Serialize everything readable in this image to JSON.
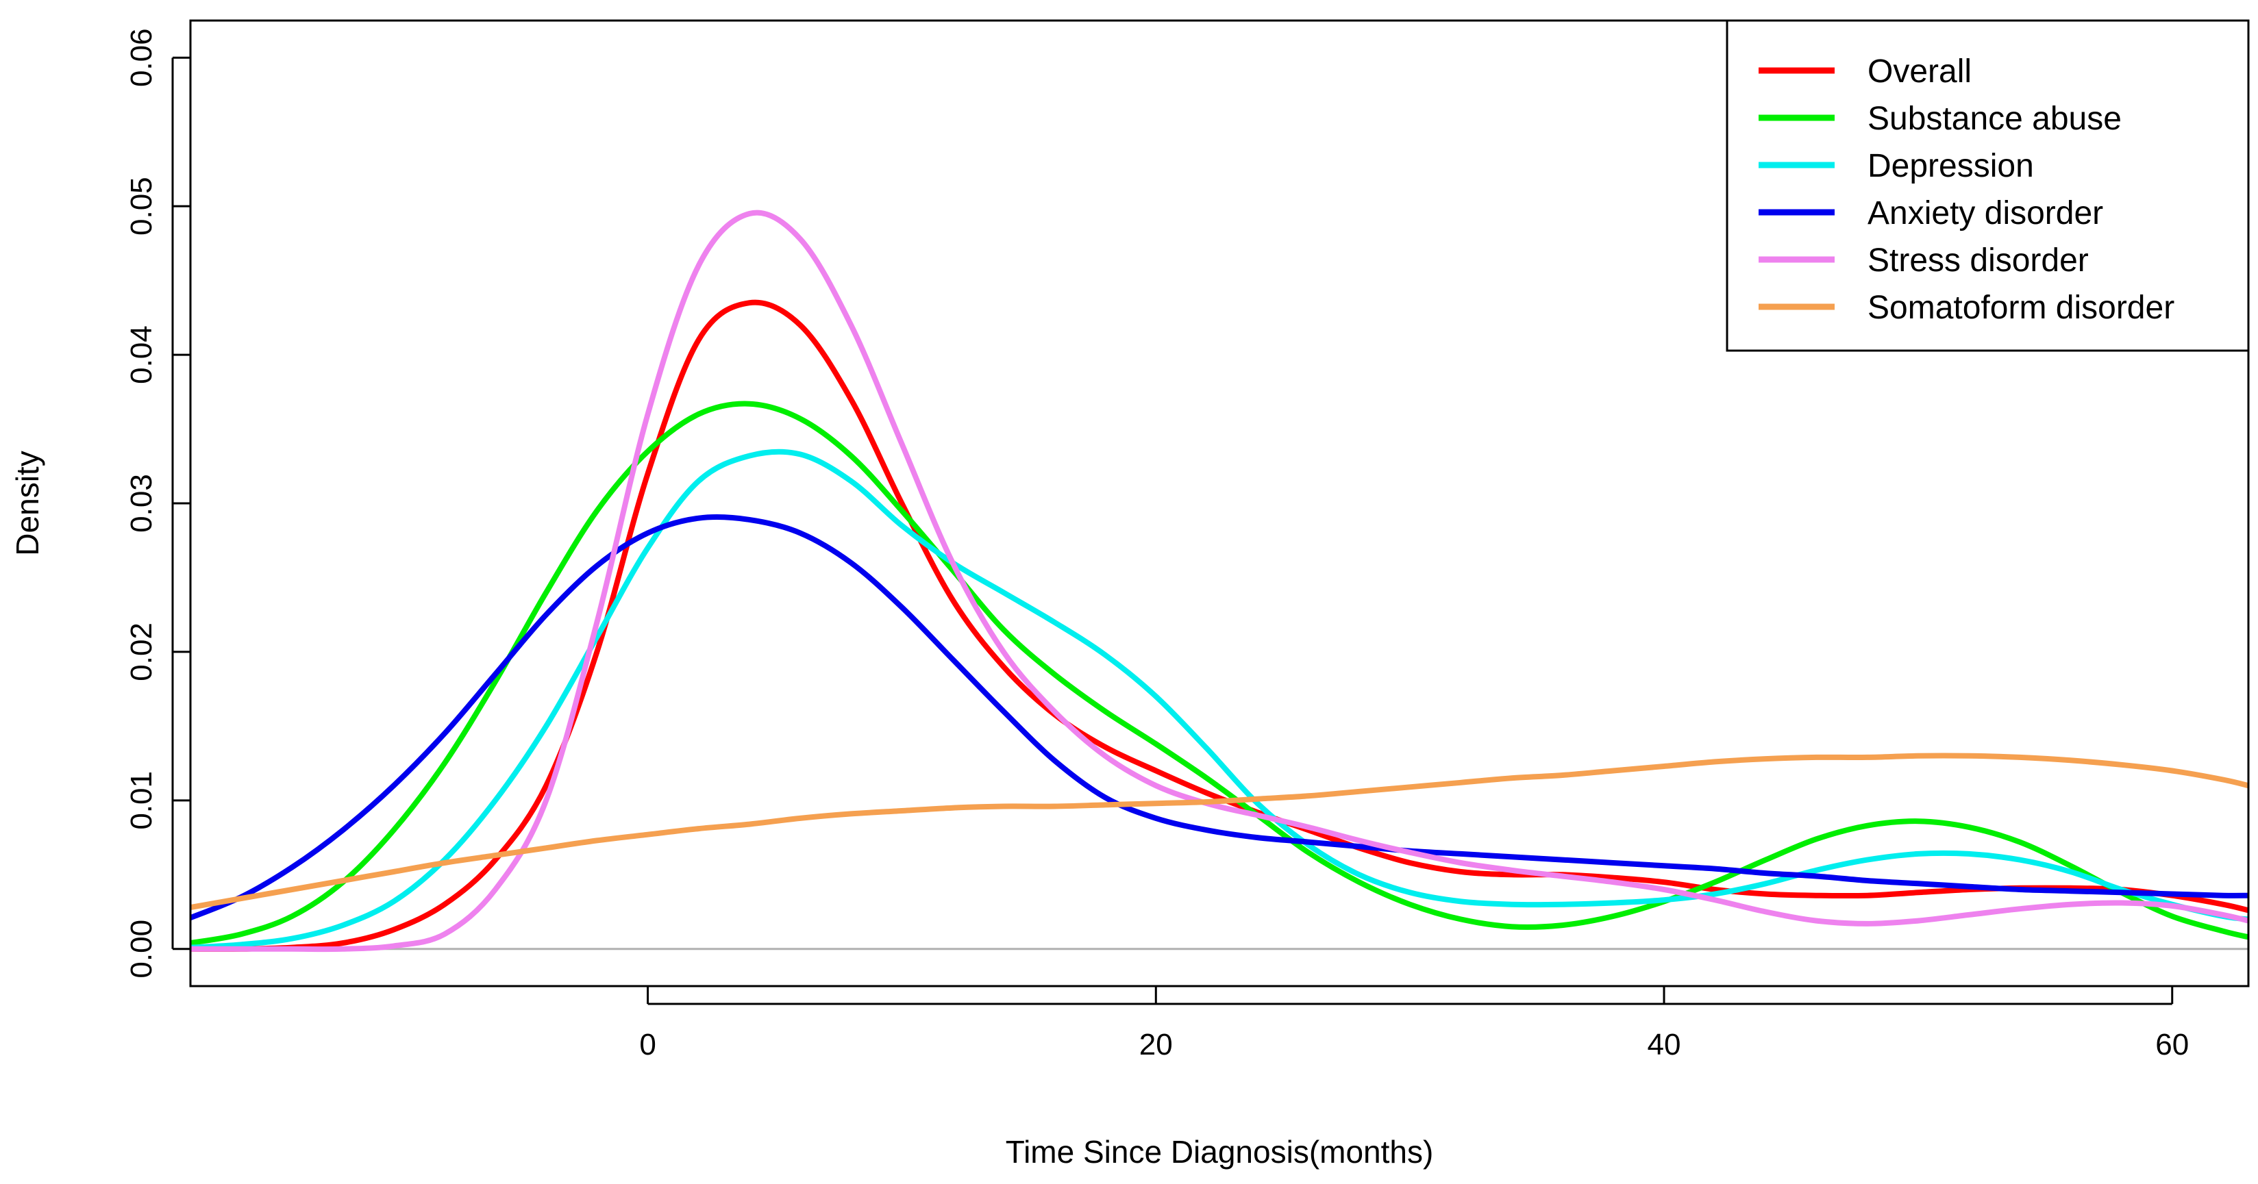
{
  "chart_data": {
    "type": "line",
    "title": "",
    "xlabel": "Time Since Diagnosis(months)",
    "ylabel": "Density",
    "xlim": [
      -18,
      63
    ],
    "ylim": [
      -0.0025,
      0.0625
    ],
    "xticks": [
      0,
      20,
      40,
      60
    ],
    "xtick_labels": [
      "0",
      "20",
      "40",
      "60"
    ],
    "yticks": [
      0.0,
      0.01,
      0.02,
      0.03,
      0.04,
      0.05,
      0.06
    ],
    "ytick_labels": [
      "0.00",
      "0.01",
      "0.02",
      "0.03",
      "0.04",
      "0.05",
      "0.06"
    ],
    "legend_position": "top-right",
    "grid": false,
    "baseline": 0,
    "series": [
      {
        "name": "Overall",
        "color": "#ff0000",
        "x": [
          -18,
          -16,
          -14,
          -12,
          -10,
          -8,
          -6,
          -4,
          -2,
          0,
          2,
          4,
          6,
          8,
          10,
          12,
          14,
          16,
          18,
          20,
          22,
          24,
          26,
          28,
          30,
          32,
          34,
          36,
          38,
          40,
          42,
          44,
          46,
          48,
          50,
          52,
          54,
          56,
          58,
          60,
          62,
          63
        ],
        "y": [
          0.0,
          0.0,
          0.0001,
          0.0004,
          0.0013,
          0.003,
          0.006,
          0.011,
          0.02,
          0.032,
          0.041,
          0.0435,
          0.042,
          0.037,
          0.03,
          0.0235,
          0.019,
          0.0158,
          0.0136,
          0.012,
          0.0105,
          0.0092,
          0.008,
          0.0068,
          0.0058,
          0.0052,
          0.005,
          0.005,
          0.0048,
          0.0045,
          0.004,
          0.0037,
          0.0036,
          0.0036,
          0.0038,
          0.004,
          0.0041,
          0.0041,
          0.004,
          0.0036,
          0.003,
          0.0026
        ]
      },
      {
        "name": "Substance abuse",
        "color": "#00ee00",
        "x": [
          -18,
          -16,
          -14,
          -12,
          -10,
          -8,
          -6,
          -4,
          -2,
          0,
          2,
          4,
          6,
          8,
          10,
          12,
          14,
          16,
          18,
          20,
          22,
          24,
          26,
          28,
          30,
          32,
          34,
          36,
          38,
          40,
          42,
          44,
          46,
          48,
          50,
          52,
          54,
          56,
          58,
          60,
          62,
          63
        ],
        "y": [
          0.0004,
          0.001,
          0.0022,
          0.0045,
          0.008,
          0.0125,
          0.018,
          0.024,
          0.0295,
          0.0335,
          0.036,
          0.0367,
          0.0357,
          0.0332,
          0.0295,
          0.0255,
          0.0215,
          0.0185,
          0.016,
          0.0138,
          0.0115,
          0.009,
          0.0065,
          0.0045,
          0.003,
          0.002,
          0.0015,
          0.0016,
          0.0022,
          0.0032,
          0.0045,
          0.006,
          0.0074,
          0.0083,
          0.0086,
          0.0082,
          0.0072,
          0.0056,
          0.0038,
          0.0022,
          0.0012,
          0.0008
        ]
      },
      {
        "name": "Depression",
        "color": "#00eeee",
        "x": [
          -18,
          -16,
          -14,
          -12,
          -10,
          -8,
          -6,
          -4,
          -2,
          0,
          2,
          4,
          6,
          8,
          10,
          12,
          14,
          16,
          18,
          20,
          22,
          24,
          26,
          28,
          30,
          32,
          34,
          36,
          38,
          40,
          42,
          44,
          46,
          48,
          50,
          52,
          54,
          56,
          58,
          60,
          62,
          63
        ],
        "y": [
          0.0001,
          0.0003,
          0.0007,
          0.0016,
          0.0032,
          0.006,
          0.01,
          0.015,
          0.021,
          0.027,
          0.0315,
          0.0332,
          0.0333,
          0.0315,
          0.0285,
          0.026,
          0.024,
          0.022,
          0.0198,
          0.017,
          0.0135,
          0.0098,
          0.007,
          0.005,
          0.0038,
          0.0032,
          0.003,
          0.003,
          0.0031,
          0.0033,
          0.0037,
          0.0044,
          0.0053,
          0.006,
          0.0064,
          0.0064,
          0.006,
          0.0052,
          0.004,
          0.003,
          0.0022,
          0.002
        ]
      },
      {
        "name": "Anxiety disorder",
        "color": "#0000ee",
        "x": [
          -18,
          -16,
          -14,
          -12,
          -10,
          -8,
          -6,
          -4,
          -2,
          0,
          2,
          4,
          6,
          8,
          10,
          12,
          14,
          16,
          18,
          20,
          22,
          24,
          26,
          28,
          30,
          32,
          34,
          36,
          38,
          40,
          42,
          44,
          46,
          48,
          50,
          52,
          54,
          56,
          58,
          60,
          62,
          63
        ],
        "y": [
          0.0021,
          0.0035,
          0.0055,
          0.008,
          0.011,
          0.0145,
          0.0185,
          0.0225,
          0.0258,
          0.028,
          0.029,
          0.0289,
          0.028,
          0.026,
          0.023,
          0.0195,
          0.016,
          0.0127,
          0.0102,
          0.0088,
          0.008,
          0.0075,
          0.0072,
          0.0069,
          0.0066,
          0.0064,
          0.0062,
          0.006,
          0.0058,
          0.0056,
          0.0054,
          0.0051,
          0.0049,
          0.0046,
          0.0044,
          0.0042,
          0.004,
          0.0039,
          0.0038,
          0.0037,
          0.0036,
          0.0036
        ]
      },
      {
        "name": "Stress disorder",
        "color": "#ee82ee",
        "x": [
          -18,
          -16,
          -14,
          -12,
          -10,
          -8,
          -6,
          -4,
          -2,
          0,
          2,
          4,
          6,
          8,
          10,
          12,
          14,
          16,
          18,
          20,
          22,
          24,
          26,
          28,
          30,
          32,
          34,
          36,
          38,
          40,
          42,
          44,
          46,
          48,
          50,
          52,
          54,
          56,
          58,
          60,
          62,
          63
        ],
        "y": [
          0.0,
          0.0,
          0.0,
          0.0,
          0.0002,
          0.001,
          0.004,
          0.01,
          0.022,
          0.036,
          0.046,
          0.0495,
          0.0478,
          0.042,
          0.034,
          0.026,
          0.02,
          0.016,
          0.013,
          0.011,
          0.0098,
          0.009,
          0.0082,
          0.0073,
          0.0065,
          0.0058,
          0.0053,
          0.0049,
          0.0045,
          0.004,
          0.0033,
          0.0025,
          0.0019,
          0.0017,
          0.0019,
          0.0023,
          0.0027,
          0.003,
          0.0031,
          0.0029,
          0.0023,
          0.0019
        ]
      },
      {
        "name": "Somatoform disorder",
        "color": "#f5a050",
        "x": [
          -18,
          -16,
          -14,
          -12,
          -10,
          -8,
          -6,
          -4,
          -2,
          0,
          2,
          4,
          6,
          8,
          10,
          12,
          14,
          16,
          18,
          20,
          22,
          24,
          26,
          28,
          30,
          32,
          34,
          36,
          38,
          40,
          42,
          44,
          46,
          48,
          50,
          52,
          54,
          56,
          58,
          60,
          62,
          63
        ],
        "y": [
          0.0028,
          0.0034,
          0.004,
          0.0046,
          0.0052,
          0.0058,
          0.0063,
          0.0068,
          0.0073,
          0.0077,
          0.0081,
          0.0084,
          0.0088,
          0.0091,
          0.0093,
          0.0095,
          0.0096,
          0.0096,
          0.0097,
          0.0098,
          0.0099,
          0.0101,
          0.0103,
          0.0106,
          0.0109,
          0.0112,
          0.0115,
          0.0117,
          0.012,
          0.0123,
          0.0126,
          0.0128,
          0.0129,
          0.0129,
          0.013,
          0.013,
          0.0129,
          0.0127,
          0.0124,
          0.012,
          0.0114,
          0.011
        ]
      }
    ]
  }
}
